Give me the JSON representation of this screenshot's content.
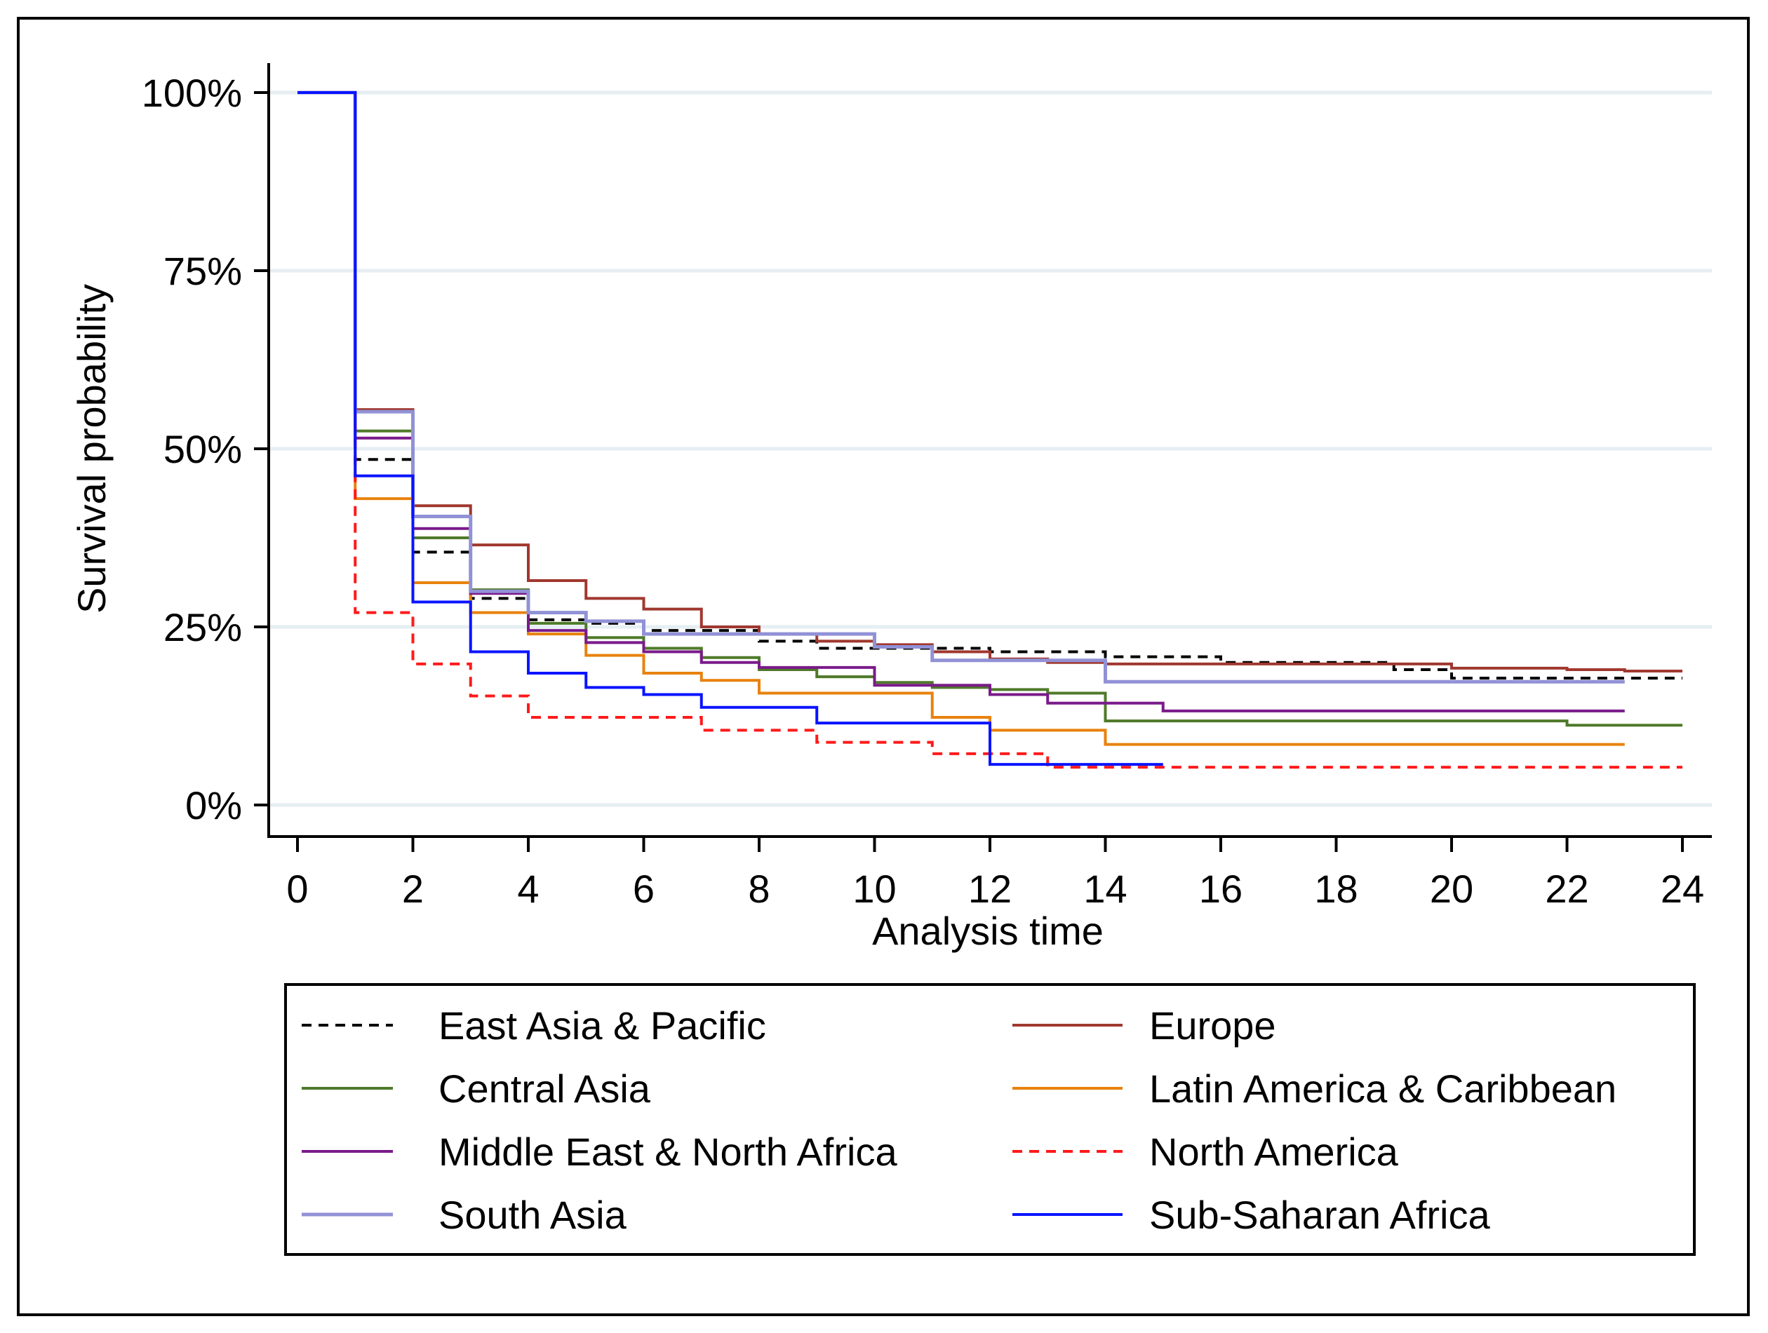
{
  "chart_data": {
    "type": "line",
    "subtype": "kaplan-meier step",
    "xlabel": "Analysis time",
    "ylabel": "Survival probability",
    "xlim": [
      0,
      24
    ],
    "ylim": [
      0,
      1
    ],
    "x_ticks": [
      0,
      2,
      4,
      6,
      8,
      10,
      12,
      14,
      16,
      18,
      20,
      22,
      24
    ],
    "x_tick_labels": [
      "0",
      "2",
      "4",
      "6",
      "8",
      "10",
      "12",
      "14",
      "16",
      "18",
      "20",
      "22",
      "24"
    ],
    "y_ticks": [
      0,
      0.25,
      0.5,
      0.75,
      1
    ],
    "y_tick_labels": [
      "0%",
      "25%",
      "50%",
      "75%",
      "100%"
    ],
    "grid": "horizontal",
    "legend_position": "bottom",
    "series": [
      {
        "name": "East Asia & Pacific",
        "color": "#000000",
        "dashed": true,
        "points": [
          [
            0,
            1.0
          ],
          [
            1,
            0.485
          ],
          [
            2,
            0.355
          ],
          [
            3,
            0.29
          ],
          [
            4,
            0.26
          ],
          [
            5,
            0.255
          ],
          [
            6,
            0.245
          ],
          [
            8,
            0.23
          ],
          [
            9,
            0.22
          ],
          [
            11,
            0.22
          ],
          [
            12,
            0.215
          ],
          [
            14,
            0.208
          ],
          [
            16,
            0.2
          ],
          [
            19,
            0.19
          ],
          [
            20,
            0.178
          ],
          [
            24,
            0.178
          ]
        ]
      },
      {
        "name": "Europe",
        "color": "#a0382f",
        "dashed": false,
        "points": [
          [
            0,
            1.0
          ],
          [
            1,
            0.555
          ],
          [
            2,
            0.42
          ],
          [
            3,
            0.365
          ],
          [
            4,
            0.315
          ],
          [
            5,
            0.29
          ],
          [
            6,
            0.275
          ],
          [
            7,
            0.25
          ],
          [
            8,
            0.24
          ],
          [
            9,
            0.23
          ],
          [
            10,
            0.225
          ],
          [
            11,
            0.215
          ],
          [
            12,
            0.205
          ],
          [
            13,
            0.2
          ],
          [
            14,
            0.198
          ],
          [
            20,
            0.192
          ],
          [
            22,
            0.19
          ],
          [
            23,
            0.188
          ],
          [
            24,
            0.188
          ]
        ]
      },
      {
        "name": "Central Asia",
        "color": "#4f7a2a",
        "dashed": false,
        "points": [
          [
            0,
            1.0
          ],
          [
            1,
            0.525
          ],
          [
            2,
            0.375
          ],
          [
            3,
            0.302
          ],
          [
            4,
            0.255
          ],
          [
            5,
            0.235
          ],
          [
            6,
            0.22
          ],
          [
            7,
            0.207
          ],
          [
            8,
            0.19
          ],
          [
            9,
            0.18
          ],
          [
            10,
            0.172
          ],
          [
            11,
            0.165
          ],
          [
            12,
            0.162
          ],
          [
            13,
            0.157
          ],
          [
            14,
            0.118
          ],
          [
            22,
            0.112
          ],
          [
            24,
            0.112
          ]
        ]
      },
      {
        "name": "Latin America & Caribbean",
        "color": "#e8820e",
        "dashed": false,
        "points": [
          [
            0,
            1.0
          ],
          [
            1,
            0.43
          ],
          [
            2,
            0.312
          ],
          [
            3,
            0.27
          ],
          [
            4,
            0.24
          ],
          [
            5,
            0.21
          ],
          [
            6,
            0.185
          ],
          [
            7,
            0.175
          ],
          [
            8,
            0.157
          ],
          [
            11,
            0.123
          ],
          [
            12,
            0.105
          ],
          [
            14,
            0.085
          ],
          [
            23,
            0.085
          ]
        ]
      },
      {
        "name": "Middle East & North Africa",
        "color": "#7a1b8a",
        "dashed": false,
        "points": [
          [
            0,
            1.0
          ],
          [
            1,
            0.515
          ],
          [
            2,
            0.388
          ],
          [
            3,
            0.297
          ],
          [
            4,
            0.245
          ],
          [
            5,
            0.228
          ],
          [
            6,
            0.215
          ],
          [
            7,
            0.2
          ],
          [
            8,
            0.193
          ],
          [
            10,
            0.168
          ],
          [
            12,
            0.155
          ],
          [
            13,
            0.143
          ],
          [
            15,
            0.132
          ],
          [
            23,
            0.132
          ]
        ]
      },
      {
        "name": "North America",
        "color": "#ff1a1a",
        "dashed": true,
        "points": [
          [
            0,
            1.0
          ],
          [
            1,
            0.27
          ],
          [
            2,
            0.198
          ],
          [
            3,
            0.153
          ],
          [
            4,
            0.123
          ],
          [
            7,
            0.105
          ],
          [
            9,
            0.088
          ],
          [
            11,
            0.072
          ],
          [
            13,
            0.053
          ],
          [
            24,
            0.053
          ]
        ]
      },
      {
        "name": "South Asia",
        "color": "#9191d6",
        "dashed": false,
        "points": [
          [
            0,
            1.0
          ],
          [
            1,
            0.552
          ],
          [
            2,
            0.405
          ],
          [
            3,
            0.3
          ],
          [
            4,
            0.27
          ],
          [
            5,
            0.258
          ],
          [
            6,
            0.24
          ],
          [
            10,
            0.222
          ],
          [
            11,
            0.203
          ],
          [
            14,
            0.173
          ],
          [
            23,
            0.173
          ]
        ]
      },
      {
        "name": "Sub-Saharan Africa",
        "color": "#0a14ff",
        "dashed": false,
        "points": [
          [
            0,
            1.0
          ],
          [
            1,
            0.462
          ],
          [
            2,
            0.285
          ],
          [
            3,
            0.215
          ],
          [
            4,
            0.185
          ],
          [
            5,
            0.165
          ],
          [
            6,
            0.155
          ],
          [
            7,
            0.137
          ],
          [
            9,
            0.115
          ],
          [
            12,
            0.057
          ],
          [
            15,
            0.057
          ]
        ]
      }
    ],
    "legend_order": [
      [
        "East Asia & Pacific",
        "Europe"
      ],
      [
        "Central Asia",
        "Latin America & Caribbean"
      ],
      [
        "Middle East & North Africa",
        "North America"
      ],
      [
        "South Asia",
        "Sub-Saharan Africa"
      ]
    ]
  }
}
